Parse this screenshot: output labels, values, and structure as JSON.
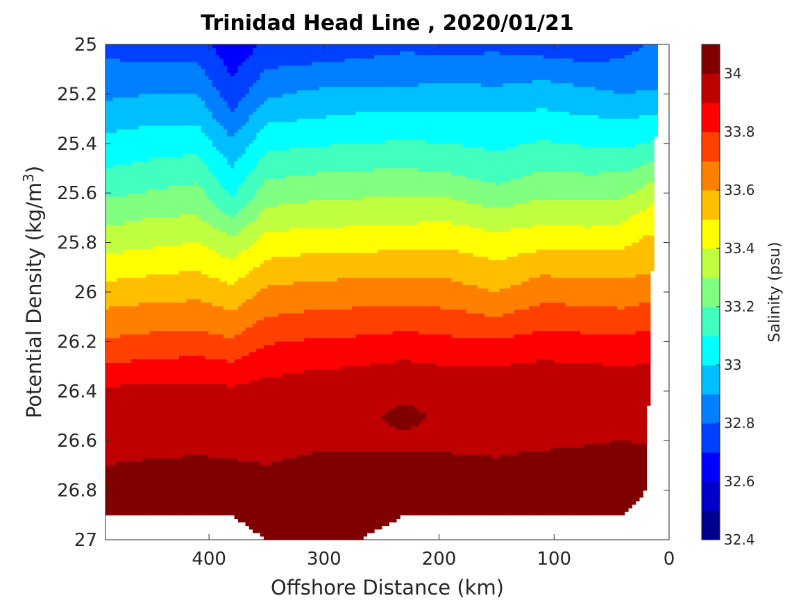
{
  "title": "Trinidad Head Line , 2020/01/21",
  "chart_data": {
    "type": "heatmap",
    "subtype": "filled-contour",
    "title": "Trinidad Head Line , 2020/01/21",
    "xlabel": "Offshore Distance (km)",
    "ylabel_main": "Potential Density (kg/m",
    "ylabel_sup": "3",
    "ylabel_tail": ")",
    "xlim": [
      490,
      0
    ],
    "ylim": [
      25,
      27
    ],
    "y_reversed": true,
    "xticks": [
      400,
      300,
      200,
      100,
      0
    ],
    "yticks": [
      "25",
      "25.2",
      "25.4",
      "25.6",
      "25.8",
      "26",
      "26.2",
      "26.4",
      "26.6",
      "26.8",
      "27"
    ],
    "colorbar": {
      "label": "Salinity (psu)",
      "range": [
        32.4,
        34.1
      ],
      "ticks": [
        "32.4",
        "32.6",
        "32.8",
        "33",
        "33.2",
        "33.4",
        "33.6",
        "33.8",
        "34"
      ],
      "levels": [
        32.4,
        32.5,
        32.6,
        32.7,
        32.8,
        32.9,
        33.0,
        33.1,
        33.2,
        33.3,
        33.4,
        33.5,
        33.6,
        33.7,
        33.8,
        33.9,
        34.0,
        34.1
      ],
      "colors": [
        "#00008f",
        "#0000c8",
        "#0000ff",
        "#0040ff",
        "#0080ff",
        "#00bfff",
        "#00ffff",
        "#40ffbf",
        "#80ff80",
        "#bfff40",
        "#ffff00",
        "#ffbf00",
        "#ff8000",
        "#ff4000",
        "#ff0000",
        "#bf0000",
        "#800000"
      ]
    },
    "x_distances": [
      490,
      450,
      410,
      380,
      350,
      310,
      270,
      230,
      190,
      150,
      110,
      70,
      40,
      20,
      10
    ],
    "bottom_density": [
      26.9,
      26.9,
      26.9,
      26.9,
      27.0,
      27.0,
      27.0,
      26.9,
      26.9,
      26.9,
      26.9,
      26.9,
      26.9,
      26.8,
      25.1
    ],
    "isopycnal_salinity": {
      "25.0": [
        32.78,
        32.73,
        32.75,
        32.62,
        32.72,
        32.73,
        32.76,
        32.78,
        32.77,
        32.78,
        32.74,
        32.7,
        32.78,
        32.8,
        32.8
      ],
      "25.1": [
        32.82,
        32.82,
        32.82,
        32.68,
        32.8,
        32.82,
        32.83,
        32.84,
        32.84,
        32.84,
        32.86,
        32.84,
        32.82,
        32.82,
        32.82
      ],
      "25.2": [
        32.88,
        32.9,
        32.9,
        32.74,
        32.88,
        32.92,
        32.93,
        32.93,
        32.94,
        32.93,
        32.95,
        32.92,
        32.9,
        32.91,
        32.91
      ],
      "25.3": [
        32.96,
        32.98,
        32.98,
        32.82,
        32.98,
        33.0,
        33.02,
        33.03,
        33.02,
        33.02,
        33.03,
        33.01,
        33.0,
        33.01,
        33.02
      ],
      "25.4": [
        33.03,
        33.05,
        33.06,
        32.92,
        33.07,
        33.09,
        33.1,
        33.11,
        33.1,
        33.08,
        33.11,
        33.09,
        33.08,
        33.1,
        33.13
      ],
      "25.5": [
        33.1,
        33.13,
        33.15,
        33.0,
        33.16,
        33.18,
        33.19,
        33.2,
        33.18,
        33.14,
        33.19,
        33.18,
        33.18,
        33.22,
        33.26
      ],
      "25.6": [
        33.18,
        33.21,
        33.23,
        33.08,
        33.25,
        33.27,
        33.28,
        33.29,
        33.28,
        33.23,
        33.28,
        33.27,
        33.28,
        33.33,
        33.38
      ],
      "25.7": [
        33.27,
        33.3,
        33.31,
        33.2,
        33.34,
        33.36,
        33.37,
        33.38,
        33.38,
        33.34,
        33.37,
        33.36,
        33.38,
        33.44,
        33.48
      ],
      "25.8": [
        33.36,
        33.38,
        33.4,
        33.33,
        33.44,
        33.46,
        33.46,
        33.47,
        33.48,
        33.44,
        33.47,
        33.47,
        33.48,
        33.52,
        33.52
      ],
      "25.9": [
        33.45,
        33.47,
        33.49,
        33.43,
        33.53,
        33.55,
        33.56,
        33.57,
        33.56,
        33.52,
        33.57,
        33.56,
        33.56,
        33.58,
        33.58
      ],
      "26.0": [
        33.54,
        33.56,
        33.57,
        33.53,
        33.62,
        33.64,
        33.65,
        33.65,
        33.64,
        33.6,
        33.66,
        33.65,
        33.64,
        33.66,
        33.66
      ],
      "26.1": [
        33.63,
        33.65,
        33.66,
        33.62,
        33.7,
        33.72,
        33.73,
        33.74,
        33.73,
        33.7,
        33.75,
        33.74,
        33.73,
        33.75,
        33.75
      ],
      "26.2": [
        33.71,
        33.73,
        33.74,
        33.71,
        33.79,
        33.81,
        33.82,
        33.84,
        33.82,
        33.81,
        33.84,
        33.83,
        33.82,
        33.84,
        33.84
      ],
      "26.3": [
        33.81,
        33.83,
        33.84,
        33.82,
        33.87,
        33.89,
        33.9,
        33.92,
        33.9,
        33.9,
        33.92,
        33.91,
        33.9,
        33.91,
        33.91
      ],
      "26.4": [
        33.92,
        33.93,
        33.93,
        33.92,
        33.94,
        33.95,
        33.95,
        33.97,
        33.95,
        33.95,
        33.96,
        33.95,
        33.93,
        33.93,
        33.93
      ],
      "26.5": [
        33.96,
        33.96,
        33.96,
        33.96,
        33.96,
        33.97,
        33.97,
        34.03,
        33.97,
        33.97,
        33.97,
        33.97,
        33.96,
        33.96,
        33.96
      ],
      "26.6": [
        33.97,
        33.97,
        33.97,
        33.97,
        33.97,
        33.98,
        33.98,
        33.98,
        33.98,
        33.98,
        33.98,
        33.99,
        34.0,
        33.99,
        33.99
      ],
      "26.7": [
        34.0,
        34.01,
        34.02,
        34.01,
        34.0,
        34.02,
        34.02,
        34.02,
        34.02,
        34.01,
        34.03,
        34.04,
        34.05,
        34.04,
        34.04
      ],
      "26.8": [
        34.04,
        34.05,
        34.05,
        34.05,
        34.05,
        34.06,
        34.06,
        34.06,
        34.06,
        34.05,
        34.06,
        34.07,
        34.08,
        34.08,
        34.08
      ],
      "26.9": [
        34.06,
        34.07,
        34.07,
        34.07,
        34.08,
        34.09,
        34.09,
        34.09,
        34.08,
        34.07,
        34.08,
        34.09,
        34.1,
        34.1,
        34.1
      ],
      "27.0": [
        34.07,
        34.08,
        34.08,
        34.08,
        34.11,
        34.12,
        34.12,
        34.1,
        34.09,
        34.08,
        34.09,
        34.1,
        34.11,
        34.11,
        34.11
      ]
    },
    "grid": false,
    "legend": "colorbar-right"
  }
}
